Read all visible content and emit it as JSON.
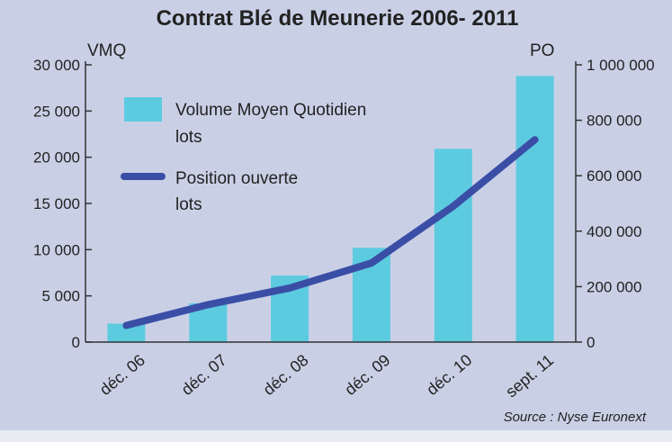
{
  "chart_data": {
    "type": "bar",
    "title": "Contrat Blé de Meunerie 2006- 2011",
    "ylabel_left": "VMQ",
    "ylabel_right": "PO",
    "categories": [
      "déc. 06",
      "déc. 07",
      "déc. 08",
      "déc. 09",
      "déc. 10",
      "sept. 11"
    ],
    "ylim_left": [
      0,
      30000
    ],
    "ylim_right": [
      0,
      1000000
    ],
    "yticks_left": [
      "0",
      "5 000",
      "10 000",
      "15 000",
      "20 000",
      "25 000",
      "30 000"
    ],
    "yticks_right": [
      "0",
      "200 000",
      "400 000",
      "600 000",
      "800 000",
      "1 000 000"
    ],
    "series": [
      {
        "name": "Volume Moyen Quotidien",
        "name_line2": "lots",
        "type": "bar",
        "axis": "left",
        "color": "#5ccbe0",
        "values": [
          2000,
          4200,
          7200,
          10200,
          20900,
          28800
        ]
      },
      {
        "name": "Position ouverte",
        "name_line2": "lots",
        "type": "line",
        "axis": "right",
        "color": "#3b4ea6",
        "values": [
          60000,
          135000,
          195000,
          285000,
          490000,
          730000
        ]
      }
    ],
    "legend_position": "top-left",
    "grid": false,
    "source": "Source : Nyse Euronext"
  }
}
